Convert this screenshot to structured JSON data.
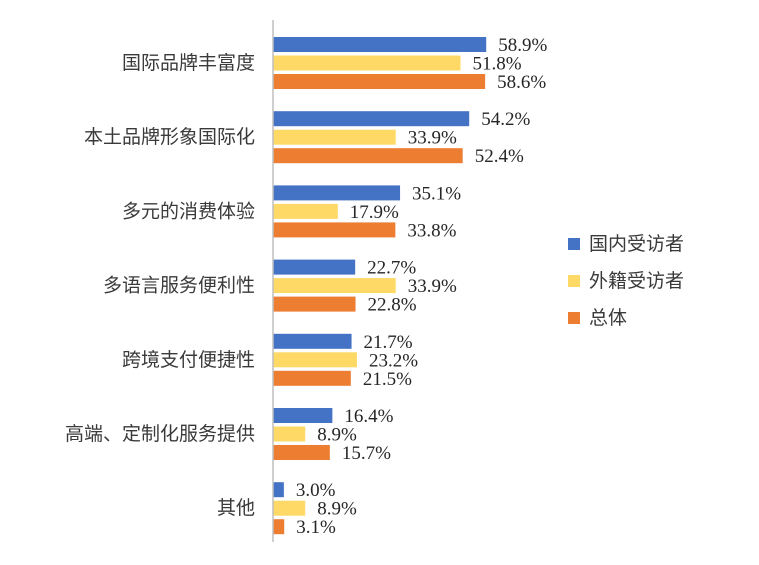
{
  "chart_data": {
    "type": "bar",
    "orientation": "horizontal",
    "categories": [
      "国际品牌丰富度",
      "本土品牌形象国际化",
      "多元的消费体验",
      "多语言服务便利性",
      "跨境支付便捷性",
      "高端、定制化服务提供",
      "其他"
    ],
    "series": [
      {
        "name": "国内受访者",
        "values": [
          58.9,
          54.2,
          35.1,
          22.7,
          21.7,
          16.4,
          3.0
        ],
        "labels": [
          "58.9%",
          "54.2%",
          "35.1%",
          "22.7%",
          "21.7%",
          "16.4%",
          "3.0%"
        ],
        "color": "#4472C4"
      },
      {
        "name": "外籍受访者",
        "values": [
          51.8,
          33.9,
          17.9,
          33.9,
          23.2,
          8.9,
          8.9
        ],
        "labels": [
          "51.8%",
          "33.9%",
          "17.9%",
          "33.9%",
          "23.2%",
          "8.9%",
          "8.9%"
        ],
        "color": "#FFD966"
      },
      {
        "name": "总体",
        "values": [
          58.6,
          52.4,
          33.8,
          22.8,
          21.5,
          15.7,
          3.1
        ],
        "labels": [
          "58.6%",
          "52.4%",
          "33.8%",
          "22.8%",
          "21.5%",
          "15.7%",
          "3.1%"
        ],
        "color": "#ED7D31"
      }
    ],
    "xlim": [
      0,
      100
    ],
    "grid": false,
    "legend_position": "right",
    "axis_color": "#BFBFBF"
  }
}
